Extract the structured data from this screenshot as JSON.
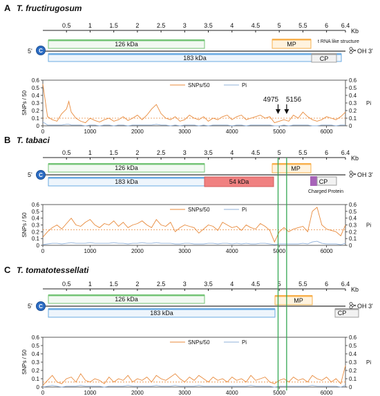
{
  "colors": {
    "snp_line": "#e8893a",
    "pi_line": "#8fb0d9",
    "mean_line": "#e8893a",
    "gene_126": "#74c476",
    "gene_183": "#6aaae2",
    "gene_54": "#f08080",
    "gene_mp": "#f8b04d",
    "gene_cp": "#9e9e9e",
    "charged_protein": "#a763b8",
    "marker_line": "#34a853",
    "cap": "#2b6cc4"
  },
  "icons": {
    "cap": "cap-icon",
    "trna": "scissors-icon"
  },
  "scale": {
    "ticks": [
      "0.5",
      "1",
      "1.5",
      "2",
      "2.5",
      "3",
      "3.5",
      "4",
      "4.5",
      "5",
      "5.5",
      "6",
      "6.4"
    ],
    "unit": "Kb"
  },
  "genome_labels": {
    "five_prime": "5'",
    "three_prime": "OH 3'",
    "cap_symbol": "C"
  },
  "annotations": {
    "marker_a": "4975",
    "marker_b": "5156",
    "marker_a_pos": 4975,
    "marker_b_pos": 5156
  },
  "panels": [
    {
      "letter": "A",
      "title": "T. fructirugosum",
      "genes": {
        "g126": "126 kDa",
        "g183": "183 kDa",
        "mp": "MP",
        "cp": "CP",
        "trna": "t RNA like structure"
      }
    },
    {
      "letter": "B",
      "title": "T. tabaci",
      "genes": {
        "g126": "126 kDa",
        "g183": "183 kDa",
        "g54": "54 kDa",
        "mp": "MP",
        "cp": "CP",
        "charged": "Charged Protein"
      }
    },
    {
      "letter": "C",
      "title": "T. tomatotessellati",
      "genes": {
        "g126": "126 kDa",
        "g183": "183 kDa",
        "mp": "MP",
        "cp": "CP"
      }
    }
  ],
  "chart_data": [
    {
      "type": "line",
      "panel": "A",
      "legend": [
        "SNPs/50",
        "Pi"
      ],
      "legend_placement": "top-center",
      "ylabel_left": "SNPs / 50",
      "ylabel_right": "Pi",
      "xlim": [
        0,
        6400
      ],
      "ylim": [
        0,
        0.6
      ],
      "x_ticks": [
        "0",
        "1000",
        "2000",
        "3000",
        "4000",
        "5000",
        "6000"
      ],
      "y_ticks": [
        "0",
        "0.1",
        "0.2",
        "0.3",
        "0.4",
        "0.5",
        "0.6"
      ],
      "mean_snp": 0.1,
      "grid": false,
      "x": [
        0,
        100,
        200,
        300,
        400,
        500,
        550,
        600,
        700,
        800,
        900,
        1000,
        1100,
        1200,
        1300,
        1400,
        1500,
        1600,
        1700,
        1800,
        1900,
        2000,
        2100,
        2200,
        2300,
        2400,
        2500,
        2600,
        2700,
        2800,
        2900,
        3000,
        3100,
        3200,
        3300,
        3400,
        3500,
        3600,
        3700,
        3800,
        3900,
        4000,
        4100,
        4200,
        4300,
        4400,
        4500,
        4600,
        4700,
        4800,
        4900,
        5000,
        5100,
        5200,
        5300,
        5400,
        5500,
        5600,
        5700,
        5800,
        5900,
        6000,
        6100,
        6200,
        6300,
        6400
      ],
      "series": [
        {
          "name": "SNPs/50",
          "values": [
            0.55,
            0.12,
            0.08,
            0.06,
            0.16,
            0.22,
            0.32,
            0.18,
            0.1,
            0.06,
            0.04,
            0.1,
            0.07,
            0.05,
            0.08,
            0.1,
            0.06,
            0.08,
            0.12,
            0.07,
            0.1,
            0.14,
            0.08,
            0.14,
            0.22,
            0.28,
            0.16,
            0.1,
            0.08,
            0.12,
            0.06,
            0.08,
            0.14,
            0.1,
            0.08,
            0.12,
            0.06,
            0.1,
            0.08,
            0.12,
            0.14,
            0.08,
            0.12,
            0.14,
            0.08,
            0.1,
            0.12,
            0.14,
            0.1,
            0.12,
            0.04,
            0.06,
            0.08,
            0.06,
            0.14,
            0.1,
            0.18,
            0.12,
            0.08,
            0.06,
            0.08,
            0.12,
            0.1,
            0.08,
            0.12,
            0.18
          ]
        },
        {
          "name": "Pi",
          "values": [
            0.05,
            0.01,
            0.01,
            0.01,
            0.01,
            0.02,
            0.02,
            0.01,
            0.01,
            0.01,
            0.0,
            0.01,
            0.01,
            0.0,
            0.01,
            0.01,
            0.0,
            0.01,
            0.01,
            0.0,
            0.01,
            0.01,
            0.01,
            0.01,
            0.01,
            0.02,
            0.01,
            0.01,
            0.0,
            0.01,
            0.0,
            0.01,
            0.01,
            0.01,
            0.0,
            0.01,
            0.0,
            0.01,
            0.01,
            0.01,
            0.01,
            0.0,
            0.01,
            0.01,
            0.0,
            0.01,
            0.01,
            0.01,
            0.01,
            0.01,
            0.0,
            0.0,
            0.01,
            0.0,
            0.01,
            0.01,
            0.01,
            0.01,
            0.0,
            0.0,
            0.01,
            0.01,
            0.01,
            0.0,
            0.01,
            0.01
          ]
        }
      ]
    },
    {
      "type": "line",
      "panel": "B",
      "legend": [
        "SNPs/50",
        "Pi"
      ],
      "legend_placement": "top-center",
      "ylabel_left": "SNPs / 50",
      "ylabel_right": "Pi",
      "xlim": [
        0,
        6400
      ],
      "ylim": [
        0,
        0.6
      ],
      "x_ticks": [
        "0",
        "1000",
        "2000",
        "3000",
        "4000",
        "5000",
        "6000"
      ],
      "y_ticks": [
        "0",
        "0.1",
        "0.2",
        "0.3",
        "0.4",
        "0.5",
        "0.6"
      ],
      "mean_snp": 0.23,
      "grid": false,
      "x": [
        0,
        100,
        200,
        300,
        400,
        500,
        600,
        700,
        800,
        900,
        1000,
        1100,
        1200,
        1300,
        1400,
        1500,
        1600,
        1700,
        1800,
        1900,
        2000,
        2100,
        2200,
        2300,
        2400,
        2500,
        2600,
        2700,
        2800,
        2900,
        3000,
        3100,
        3200,
        3300,
        3400,
        3500,
        3600,
        3700,
        3800,
        3900,
        4000,
        4100,
        4200,
        4300,
        4400,
        4500,
        4600,
        4700,
        4800,
        4900,
        5000,
        5100,
        5200,
        5300,
        5400,
        5500,
        5600,
        5700,
        5800,
        5900,
        6000,
        6100,
        6200,
        6300,
        6400
      ],
      "series": [
        {
          "name": "SNPs/50",
          "values": [
            0.12,
            0.2,
            0.26,
            0.3,
            0.24,
            0.32,
            0.4,
            0.3,
            0.28,
            0.34,
            0.38,
            0.3,
            0.26,
            0.32,
            0.3,
            0.36,
            0.28,
            0.34,
            0.26,
            0.3,
            0.32,
            0.36,
            0.3,
            0.26,
            0.38,
            0.3,
            0.28,
            0.34,
            0.2,
            0.26,
            0.3,
            0.28,
            0.26,
            0.18,
            0.24,
            0.3,
            0.28,
            0.22,
            0.34,
            0.3,
            0.26,
            0.28,
            0.22,
            0.3,
            0.26,
            0.24,
            0.32,
            0.28,
            0.22,
            0.05,
            0.2,
            0.26,
            0.2,
            0.24,
            0.26,
            0.28,
            0.2,
            0.5,
            0.56,
            0.3,
            0.24,
            0.22,
            0.2,
            0.14,
            0.3
          ]
        },
        {
          "name": "Pi",
          "values": [
            0.01,
            0.02,
            0.03,
            0.03,
            0.02,
            0.03,
            0.04,
            0.03,
            0.03,
            0.03,
            0.04,
            0.03,
            0.03,
            0.03,
            0.03,
            0.04,
            0.03,
            0.03,
            0.02,
            0.03,
            0.03,
            0.04,
            0.03,
            0.03,
            0.04,
            0.03,
            0.03,
            0.03,
            0.02,
            0.02,
            0.03,
            0.03,
            0.02,
            0.02,
            0.02,
            0.03,
            0.03,
            0.02,
            0.03,
            0.03,
            0.02,
            0.03,
            0.02,
            0.03,
            0.02,
            0.02,
            0.03,
            0.03,
            0.02,
            0.01,
            0.02,
            0.02,
            0.02,
            0.02,
            0.02,
            0.03,
            0.02,
            0.05,
            0.06,
            0.03,
            0.02,
            0.02,
            0.02,
            0.01,
            0.03
          ]
        }
      ]
    },
    {
      "type": "line",
      "panel": "C",
      "legend": [
        "SNPs/50",
        "Pi"
      ],
      "legend_placement": "top-center",
      "ylabel_left": "SNPs / 50",
      "ylabel_right": "Pi",
      "xlim": [
        0,
        6400
      ],
      "ylim": [
        0,
        0.6
      ],
      "x_ticks": [
        "0",
        "1000",
        "2000",
        "3000",
        "4000",
        "5000",
        "6000"
      ],
      "y_ticks": [
        "0",
        "0.1",
        "0.2",
        "0.3",
        "0.4",
        "0.5",
        "0.6"
      ],
      "mean_snp": 0.06,
      "grid": false,
      "x": [
        0,
        100,
        200,
        300,
        400,
        500,
        600,
        700,
        800,
        900,
        1000,
        1100,
        1200,
        1300,
        1400,
        1500,
        1600,
        1700,
        1800,
        1900,
        2000,
        2100,
        2200,
        2300,
        2400,
        2500,
        2600,
        2700,
        2800,
        2900,
        3000,
        3100,
        3200,
        3300,
        3400,
        3500,
        3600,
        3700,
        3800,
        3900,
        4000,
        4100,
        4200,
        4300,
        4400,
        4500,
        4600,
        4700,
        4800,
        4900,
        5000,
        5100,
        5200,
        5300,
        5400,
        5500,
        5600,
        5700,
        5800,
        5900,
        6000,
        6100,
        6200,
        6300,
        6400
      ],
      "series": [
        {
          "name": "SNPs/50",
          "values": [
            0.02,
            0.08,
            0.14,
            0.06,
            0.04,
            0.1,
            0.12,
            0.06,
            0.16,
            0.08,
            0.06,
            0.1,
            0.08,
            0.04,
            0.12,
            0.06,
            0.1,
            0.08,
            0.14,
            0.06,
            0.1,
            0.08,
            0.12,
            0.06,
            0.14,
            0.1,
            0.08,
            0.12,
            0.16,
            0.1,
            0.06,
            0.12,
            0.08,
            0.14,
            0.1,
            0.06,
            0.12,
            0.08,
            0.1,
            0.06,
            0.12,
            0.08,
            0.1,
            0.06,
            0.14,
            0.08,
            0.1,
            0.12,
            0.06,
            0.04,
            0.08,
            0.1,
            0.06,
            0.12,
            0.08,
            0.1,
            0.06,
            0.14,
            0.1,
            0.08,
            0.12,
            0.06,
            0.1,
            0.04,
            0.26
          ]
        },
        {
          "name": "Pi",
          "values": [
            0.0,
            0.01,
            0.02,
            0.01,
            0.0,
            0.01,
            0.01,
            0.01,
            0.02,
            0.01,
            0.01,
            0.01,
            0.01,
            0.0,
            0.01,
            0.01,
            0.01,
            0.01,
            0.02,
            0.01,
            0.01,
            0.01,
            0.01,
            0.01,
            0.02,
            0.01,
            0.01,
            0.01,
            0.02,
            0.01,
            0.01,
            0.01,
            0.01,
            0.02,
            0.01,
            0.01,
            0.01,
            0.01,
            0.01,
            0.01,
            0.01,
            0.01,
            0.01,
            0.01,
            0.02,
            0.01,
            0.01,
            0.01,
            0.01,
            0.0,
            0.01,
            0.01,
            0.01,
            0.01,
            0.01,
            0.01,
            0.01,
            0.02,
            0.01,
            0.01,
            0.01,
            0.01,
            0.01,
            0.0,
            0.02
          ]
        }
      ]
    }
  ]
}
